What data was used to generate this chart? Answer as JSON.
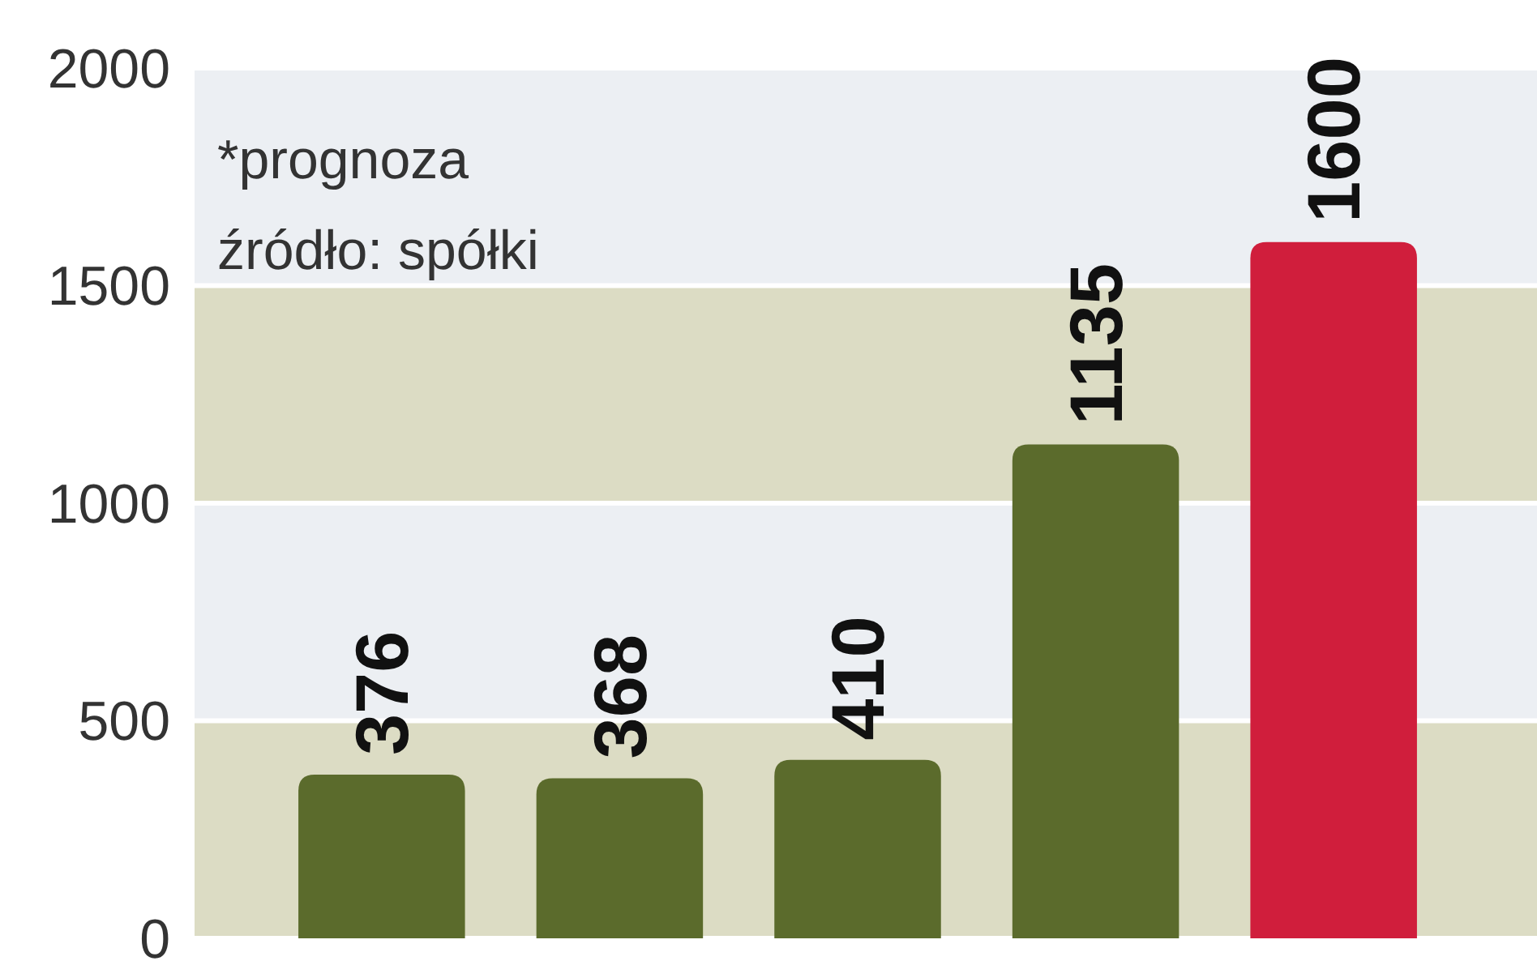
{
  "chart_data": {
    "type": "bar",
    "categories": [
      null,
      null,
      null,
      null,
      null
    ],
    "values": [
      376,
      368,
      410,
      1135,
      1600
    ],
    "colors": [
      "#5b6b2c",
      "#5b6b2c",
      "#5b6b2c",
      "#5b6b2c",
      "#d01e3c"
    ],
    "ylim": [
      0,
      2000
    ],
    "yticks": [
      0,
      500,
      1000,
      1500,
      2000
    ],
    "grid": "y",
    "data_labels": true,
    "bands": [
      {
        "axis": "y",
        "from": 0,
        "to": 500,
        "color": "#dcdcc4"
      },
      {
        "axis": "y",
        "from": 500,
        "to": 1000,
        "color": "#eceff3"
      },
      {
        "axis": "y",
        "from": 1000,
        "to": 1500,
        "color": "#dcdcc4"
      },
      {
        "axis": "y",
        "from": 1500,
        "to": 2000,
        "color": "#eceff3"
      }
    ],
    "annotations": [
      "*prognoza",
      "źródło: spółki"
    ]
  }
}
